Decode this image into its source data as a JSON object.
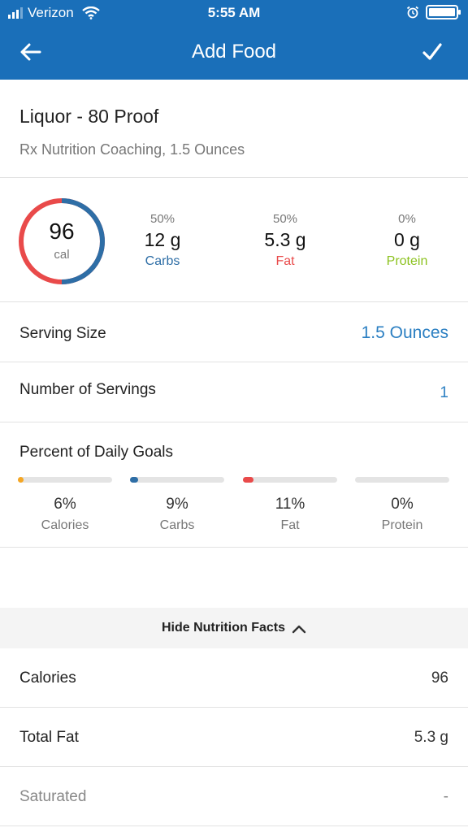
{
  "status_bar": {
    "carrier": "Verizon",
    "time": "5:55 AM"
  },
  "app_bar": {
    "title": "Add Food"
  },
  "food": {
    "name": "Liquor - 80 Proof",
    "subtitle": "Rx Nutrition Coaching, 1.5 Ounces"
  },
  "calories_ring": {
    "value": "96",
    "unit": "cal"
  },
  "macros": [
    {
      "percent": "50%",
      "amount": "12 g",
      "label": "Carbs",
      "color": "#2e6ea6"
    },
    {
      "percent": "50%",
      "amount": "5.3 g",
      "label": "Fat",
      "color": "#e94a4a"
    },
    {
      "percent": "0%",
      "amount": "0 g",
      "label": "Protein",
      "color": "#8cc21f"
    }
  ],
  "serving_size": {
    "label": "Serving Size",
    "value": "1.5 Ounces"
  },
  "servings": {
    "label": "Number of Servings",
    "value": "1"
  },
  "daily_goals": {
    "heading": "Percent of Daily Goals",
    "items": [
      {
        "percent": "6%",
        "label": "Calories",
        "fraction": 0.06,
        "color": "#f5a623"
      },
      {
        "percent": "9%",
        "label": "Carbs",
        "fraction": 0.09,
        "color": "#2e6ea6"
      },
      {
        "percent": "11%",
        "label": "Fat",
        "fraction": 0.11,
        "color": "#e94a4a"
      },
      {
        "percent": "0%",
        "label": "Protein",
        "fraction": 0.0,
        "color": "#8cc21f"
      }
    ]
  },
  "nutrition_toggle": {
    "label": "Hide Nutrition Facts"
  },
  "nutrition_facts": [
    {
      "label": "Calories",
      "value": "96"
    },
    {
      "label": "Total Fat",
      "value": "5.3 g"
    },
    {
      "label": "Saturated",
      "value": "-"
    }
  ],
  "colors": {
    "brand": "#1a6fb9",
    "link": "#2b7fc2"
  }
}
